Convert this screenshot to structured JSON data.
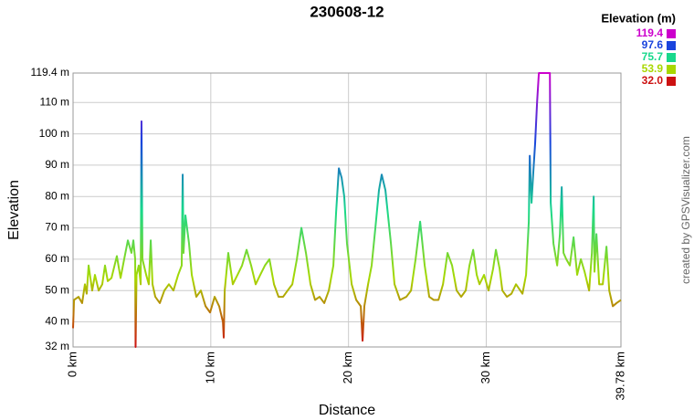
{
  "chart_data": {
    "type": "line",
    "title": "230608-12",
    "x_label": "Distance",
    "y_label": "Elevation",
    "credit": "created by GPSVisualizer.com",
    "xlim": [
      0,
      39.78
    ],
    "ylim": [
      32,
      119.4
    ],
    "grid": true,
    "xticks": [
      {
        "value": 0,
        "label": "0 km"
      },
      {
        "value": 10,
        "label": "10 km"
      },
      {
        "value": 20,
        "label": "20 km"
      },
      {
        "value": 30,
        "label": "30 km"
      },
      {
        "value": 39.78,
        "label": "39.78 km"
      }
    ],
    "yticks": [
      {
        "value": 32,
        "label": "32 m"
      },
      {
        "value": 40,
        "label": "40 m"
      },
      {
        "value": 50,
        "label": "50 m"
      },
      {
        "value": 60,
        "label": "60 m"
      },
      {
        "value": 70,
        "label": "70 m"
      },
      {
        "value": 80,
        "label": "80 m"
      },
      {
        "value": 90,
        "label": "90 m"
      },
      {
        "value": 100,
        "label": "100 m"
      },
      {
        "value": 110,
        "label": "110 m"
      },
      {
        "value": 119.4,
        "label": "119.4 m"
      }
    ],
    "legend": {
      "title": "Elevation (m)",
      "position": "top-right",
      "entries": [
        {
          "value": 119.4,
          "color": "#cc00cc"
        },
        {
          "value": 97.6,
          "color": "#1a44dd"
        },
        {
          "value": 75.7,
          "color": "#18d88c"
        },
        {
          "value": 53.9,
          "color": "#a8d800"
        },
        {
          "value": 32,
          "label": "32.0",
          "color": "#cc1111"
        }
      ]
    },
    "x": [
      0,
      0.07,
      0.4,
      0.66,
      0.86,
      0.99,
      1.13,
      1.39,
      1.59,
      1.86,
      2.12,
      2.32,
      2.52,
      2.79,
      3.18,
      3.45,
      3.71,
      3.98,
      4.24,
      4.38,
      4.51,
      4.54,
      4.61,
      4.77,
      4.91,
      4.97,
      5.04,
      5.31,
      5.5,
      5.64,
      5.77,
      5.97,
      6.3,
      6.63,
      6.96,
      7.29,
      7.63,
      7.89,
      7.96,
      8.02,
      8.16,
      8.42,
      8.62,
      8.95,
      9.28,
      9.62,
      9.95,
      10.28,
      10.61,
      10.88,
      10.94,
      11.01,
      11.27,
      11.6,
      11.94,
      12.27,
      12.6,
      12.93,
      13.26,
      13.59,
      13.93,
      14.26,
      14.59,
      14.92,
      15.25,
      15.58,
      15.92,
      16.25,
      16.58,
      16.91,
      17.24,
      17.57,
      17.9,
      18.24,
      18.57,
      18.9,
      19.1,
      19.3,
      19.5,
      19.69,
      19.89,
      20.23,
      20.56,
      20.89,
      21.02,
      21.15,
      21.42,
      21.68,
      21.95,
      22.21,
      22.41,
      22.68,
      23.08,
      23.34,
      23.74,
      24.2,
      24.54,
      24.87,
      25.2,
      25.53,
      25.86,
      26.19,
      26.53,
      26.86,
      27.19,
      27.52,
      27.85,
      28.18,
      28.51,
      28.78,
      29.05,
      29.31,
      29.51,
      29.84,
      30.17,
      30.5,
      30.7,
      30.97,
      31.17,
      31.5,
      31.83,
      32.16,
      32.63,
      32.89,
      33.09,
      33.16,
      33.29,
      33.42,
      33.55,
      33.69,
      33.82,
      34.62,
      34.68,
      34.88,
      35.15,
      35.35,
      35.48,
      35.61,
      35.81,
      36.07,
      36.34,
      36.6,
      36.87,
      37.14,
      37.47,
      37.67,
      37.8,
      37.86,
      38,
      38.2,
      38.46,
      38.73,
      38.93,
      39.19,
      39.46,
      39.78
    ],
    "values": [
      38,
      47,
      48,
      46,
      52,
      49,
      58,
      50,
      55,
      50,
      52,
      58,
      53,
      54,
      61,
      54,
      60,
      66,
      62,
      66,
      60,
      32,
      55,
      58,
      52,
      104,
      60,
      55,
      52,
      66,
      52,
      48,
      46,
      50,
      52,
      50,
      55,
      58,
      87,
      62,
      74,
      65,
      55,
      48,
      50,
      45,
      43,
      48,
      45,
      40,
      35,
      50,
      62,
      52,
      55,
      58,
      63,
      58,
      52,
      55,
      58,
      60,
      52,
      48,
      48,
      50,
      52,
      60,
      70,
      62,
      52,
      47,
      48,
      46,
      50,
      58,
      75,
      89,
      86,
      80,
      65,
      52,
      47,
      45,
      34,
      45,
      52,
      58,
      70,
      82,
      87,
      82,
      65,
      52,
      47,
      48,
      50,
      60,
      72,
      58,
      48,
      47,
      47,
      52,
      62,
      58,
      50,
      48,
      50,
      58,
      63,
      55,
      52,
      55,
      50,
      57,
      63,
      57,
      50,
      48,
      49,
      52,
      49,
      55,
      72,
      93,
      78,
      88,
      97,
      110,
      119.4,
      119.4,
      78,
      65,
      58,
      68,
      83,
      62,
      60,
      58,
      67,
      55,
      60,
      56,
      50,
      62,
      80,
      56,
      68,
      52,
      52,
      64,
      50,
      45,
      46,
      47
    ]
  }
}
